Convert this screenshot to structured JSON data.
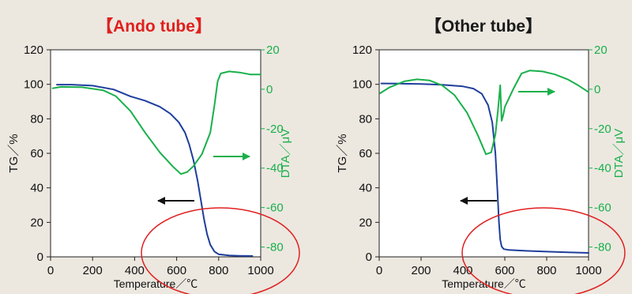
{
  "colors": {
    "background": "#ece8e0",
    "tg_line": "#1e3e9c",
    "dta_line": "#19b04b",
    "highlight_ellipse": "#e02020",
    "title_accent": "#e0201e",
    "title_normal": "#1a1a1a",
    "arrow_black": "#111111"
  },
  "chart_data": [
    {
      "type": "line",
      "title": "【Ando tube】",
      "xlabel": "Temperature／℃",
      "ylabel": "TG／%",
      "y2label": "DTA／μV",
      "xlim": [
        0,
        1000
      ],
      "ylim": [
        0,
        120
      ],
      "y2lim": [
        -85,
        20
      ],
      "x_ticks": [
        "0",
        "200",
        "400",
        "600",
        "800",
        "1000"
      ],
      "y_ticks": [
        "0",
        "20",
        "40",
        "60",
        "80",
        "100",
        "120"
      ],
      "y2_ticks": [
        "20",
        "0",
        "-20",
        "-40",
        "-60",
        "-80"
      ],
      "series": [
        {
          "name": "TG",
          "axis": "left",
          "x": [
            30,
            100,
            200,
            300,
            380,
            450,
            520,
            570,
            610,
            640,
            660,
            680,
            700,
            715,
            730,
            745,
            760,
            780,
            800,
            850,
            900,
            960
          ],
          "y": [
            99.8,
            99.8,
            99.2,
            97,
            93,
            90.5,
            87,
            83,
            78,
            72,
            65,
            56,
            44,
            33,
            22,
            13,
            7,
            3,
            1.5,
            0.8,
            0.6,
            0.5
          ]
        },
        {
          "name": "DTA",
          "axis": "right",
          "x": [
            10,
            50,
            150,
            250,
            310,
            380,
            450,
            520,
            580,
            620,
            650,
            680,
            720,
            760,
            780,
            795,
            810,
            850,
            900,
            950,
            1000
          ],
          "y": [
            0.5,
            1.2,
            1.0,
            -0.5,
            -3.5,
            -11,
            -22,
            -32,
            -39,
            -43,
            -42,
            -39,
            -33,
            -22,
            -8,
            4,
            8,
            9,
            8.5,
            7.5,
            7.5
          ]
        }
      ]
    },
    {
      "type": "line",
      "title": "【Other tube】",
      "xlabel": "Temperature／℃",
      "ylabel": "TG／%",
      "y2label": "DTA／μV",
      "xlim": [
        0,
        1000
      ],
      "ylim": [
        0,
        120
      ],
      "y2lim": [
        -85,
        20
      ],
      "x_ticks": [
        "0",
        "200",
        "400",
        "600",
        "800",
        "1000"
      ],
      "y_ticks": [
        "0",
        "20",
        "40",
        "60",
        "80",
        "100",
        "120"
      ],
      "y2_ticks": [
        "20",
        "0",
        "-20",
        "-40",
        "-60",
        "-80"
      ],
      "series": [
        {
          "name": "TG",
          "axis": "left",
          "x": [
            10,
            100,
            200,
            300,
            400,
            450,
            490,
            520,
            540,
            555,
            565,
            572,
            578,
            585,
            595,
            620,
            700,
            800,
            900,
            1000
          ],
          "y": [
            100.5,
            100.4,
            100.2,
            99.7,
            98.8,
            97.5,
            94.5,
            88,
            78,
            60,
            38,
            20,
            10,
            6,
            4.5,
            4,
            3.5,
            3,
            2.6,
            2.3
          ]
        },
        {
          "name": "DTA",
          "axis": "right",
          "x": [
            5,
            50,
            120,
            180,
            240,
            300,
            360,
            420,
            470,
            510,
            535,
            555,
            568,
            578,
            585,
            593,
            600,
            640,
            680,
            720,
            780,
            840,
            900,
            950,
            1000
          ],
          "y": [
            -2,
            1,
            4,
            5,
            4.5,
            2,
            -3,
            -12,
            -23,
            -33,
            -32,
            -23,
            -10,
            2,
            -16,
            -13,
            -9,
            0,
            8,
            9.5,
            9,
            7.5,
            5,
            2,
            -1.5
          ]
        }
      ]
    }
  ]
}
